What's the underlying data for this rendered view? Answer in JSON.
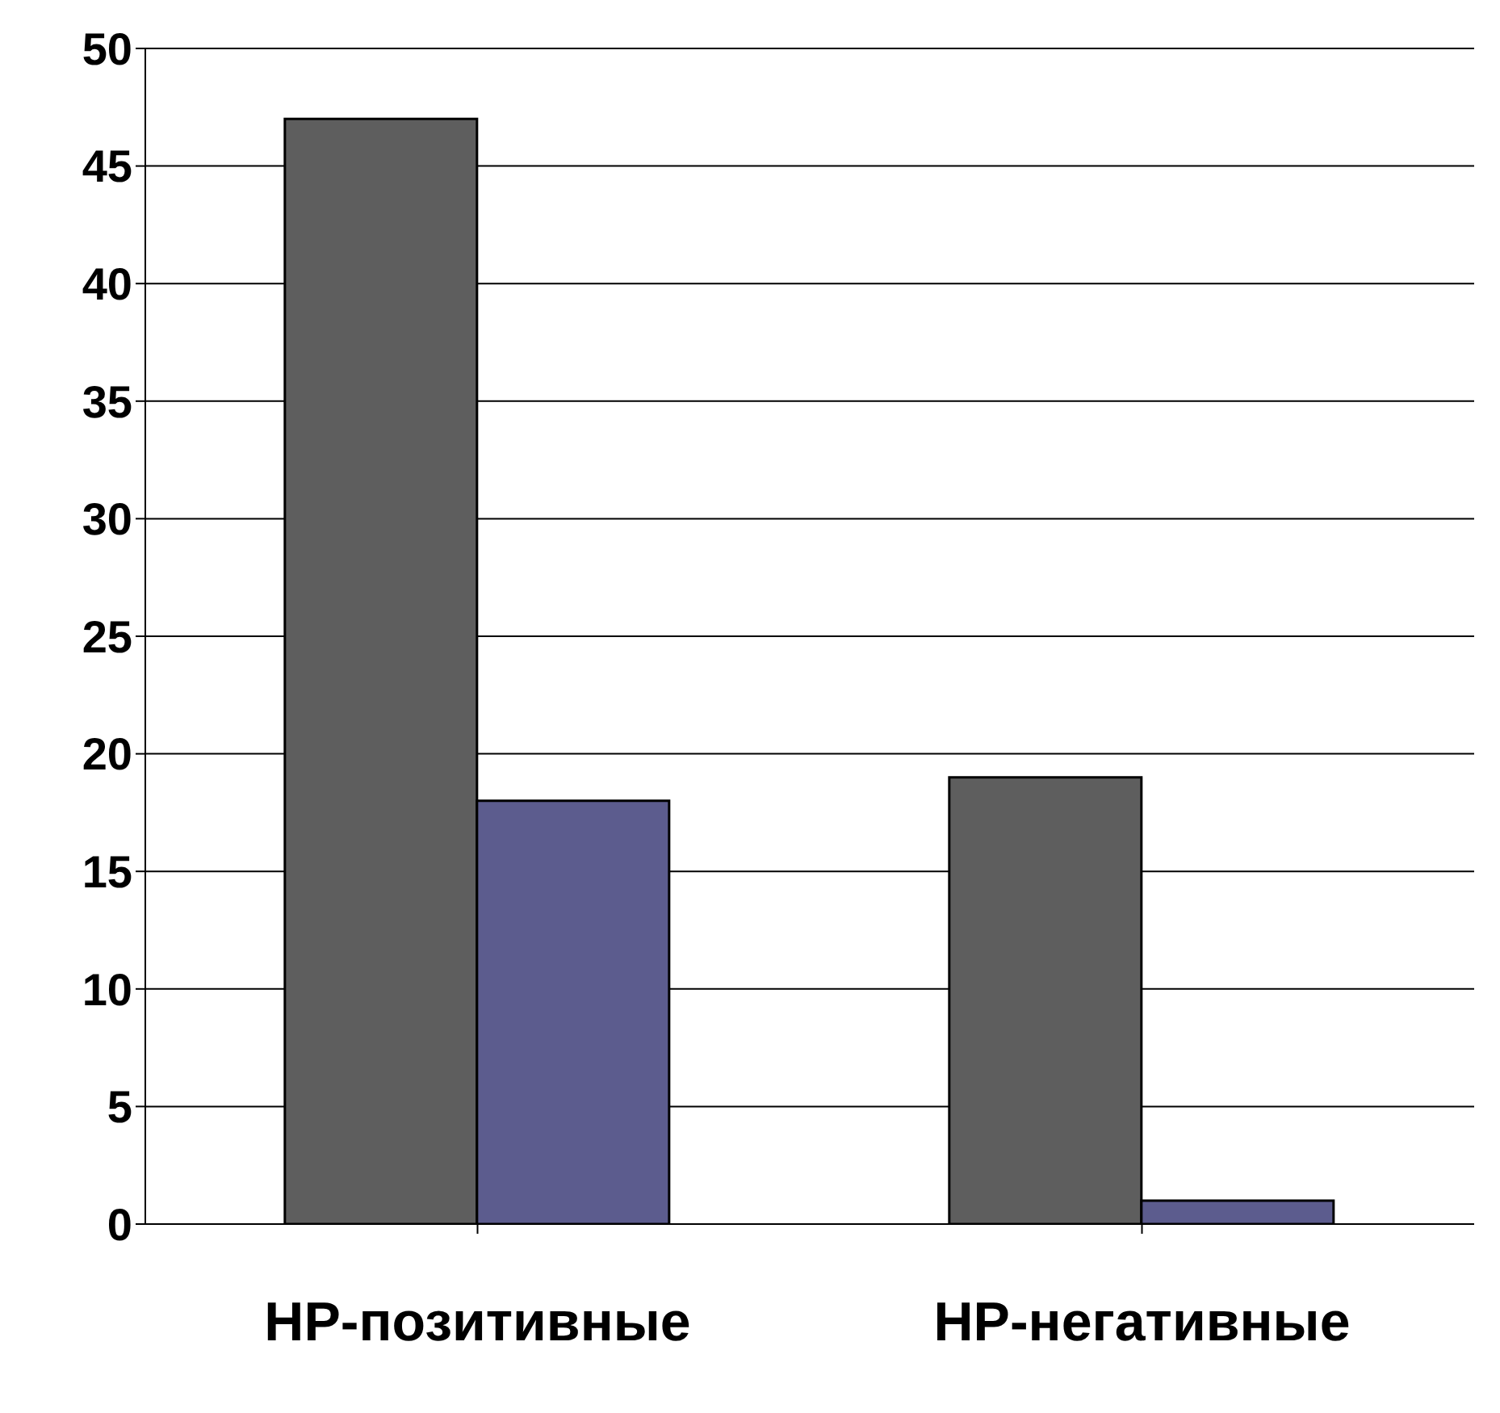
{
  "chart_data": {
    "type": "bar",
    "categories": [
      "HP-позитивные",
      "HP-негативные"
    ],
    "series": [
      {
        "color": "#5e5e5e",
        "values": [
          47,
          19
        ]
      },
      {
        "color": "#5c5c8e",
        "values": [
          18,
          1
        ]
      }
    ],
    "ylim": [
      0,
      50
    ],
    "yticks": [
      0,
      5,
      10,
      15,
      20,
      25,
      30,
      35,
      40,
      45,
      50
    ],
    "grid": "y"
  }
}
